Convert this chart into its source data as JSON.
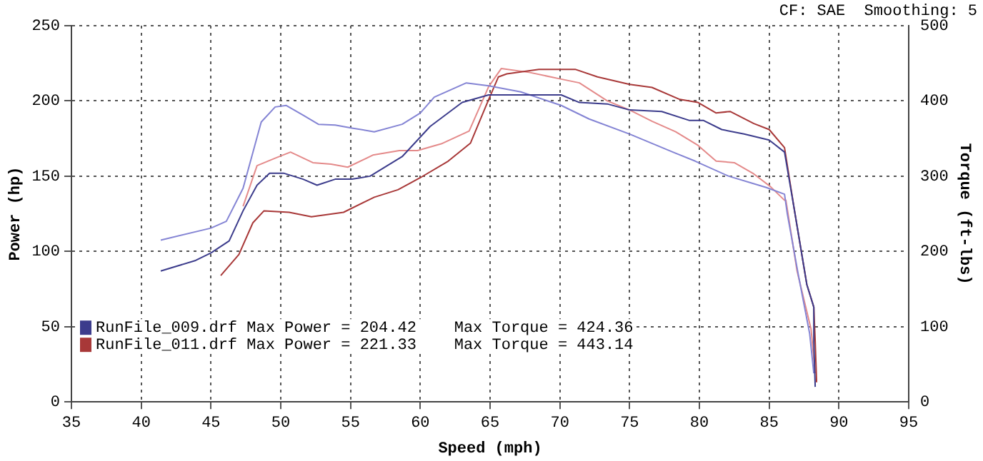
{
  "chart_data": {
    "type": "line",
    "xlabel": "Speed (mph)",
    "ylabel": "Power (hp)",
    "y2label": "Torque (ft-lbs)",
    "annotations": [
      "CF: SAE  Smoothing: 5"
    ],
    "xlim": [
      35,
      95
    ],
    "xticks": [
      35,
      40,
      45,
      50,
      55,
      60,
      65,
      70,
      75,
      80,
      85,
      90,
      95
    ],
    "ylim": [
      0,
      250
    ],
    "yticks": [
      0,
      50,
      100,
      150,
      200,
      250
    ],
    "y2lim": [
      0,
      500
    ],
    "y2ticks": [
      0,
      100,
      200,
      300,
      400,
      500
    ],
    "grid": true,
    "legend": "bottom left",
    "marker": "none",
    "line_style": "solid",
    "series": [
      {
        "name": "RunFile_009.drf Max Power = 204.42    Max Torque = 424.36",
        "color": "#3c3c8c",
        "x": [
          41.4,
          43.9,
          45,
          46.3,
          47.3,
          48.3,
          49.2,
          50.2,
          51.6,
          52.6,
          53.9,
          55.1,
          56.4,
          58.7,
          60.7,
          63,
          64.9,
          67.5,
          70.1,
          71.4,
          73.4,
          75,
          77.3,
          79.3,
          80.3,
          81.6,
          83.2,
          85,
          86.1,
          86.8,
          87.7,
          88.2,
          88.2,
          88.3
        ],
        "values": [
          87,
          94,
          99,
          107,
          127,
          144,
          152,
          152,
          148,
          144,
          148,
          148,
          150,
          163,
          183,
          199,
          204,
          204,
          204,
          199,
          198,
          194,
          193,
          187,
          187,
          181,
          178,
          174,
          166,
          128,
          78,
          63,
          40,
          10
        ]
      },
      {
        "color": "#8484d4",
        "axis": "y2",
        "x": [
          41.4,
          45,
          46.1,
          47.3,
          48.6,
          49.6,
          50.4,
          51.6,
          52.7,
          53.9,
          55.1,
          56.7,
          58.7,
          60,
          61,
          63.3,
          64.9,
          67.2,
          70.1,
          72.1,
          75,
          78.1,
          79.7,
          82.1,
          84.8,
          86.1,
          86.3,
          87.1,
          87.9,
          88.2
        ],
        "values": [
          215,
          231,
          240,
          284,
          372,
          392,
          394,
          381,
          369,
          368,
          364,
          359,
          369,
          384,
          405,
          424,
          420,
          412,
          394,
          376,
          356,
          332,
          320,
          300,
          285,
          276,
          250,
          168,
          91,
          38
        ]
      },
      {
        "name": "RunFile_011.drf Max Power = 221.33    Max Torque = 443.14",
        "color": "#a83838",
        "x": [
          45.7,
          47,
          48,
          48.8,
          50.6,
          52.2,
          54.5,
          56.7,
          58.4,
          60,
          62,
          63.6,
          64.9,
          65.6,
          66.2,
          68.5,
          71.1,
          72.7,
          75,
          76.6,
          78.6,
          79.9,
          81.2,
          82.2,
          83.9,
          85,
          86.1,
          86.8,
          87.7,
          88.2,
          88.3,
          88.4
        ],
        "values": [
          84,
          98,
          119,
          127,
          126,
          123,
          126,
          136,
          141,
          149,
          160,
          172,
          201,
          216,
          218,
          221,
          221,
          216,
          211,
          209,
          201,
          199,
          192,
          193,
          185,
          181,
          169,
          128,
          78,
          63,
          40,
          13
        ]
      },
      {
        "color": "#e48a8a",
        "axis": "y2",
        "x": [
          47.3,
          48.3,
          49.6,
          50.7,
          52.3,
          53.6,
          54.8,
          56.6,
          58.5,
          59.8,
          61.5,
          63.5,
          64.9,
          65.8,
          67.8,
          70.1,
          71.4,
          73.4,
          75,
          76.6,
          78.3,
          79.9,
          81.2,
          82.5,
          83.9,
          85.1,
          86.1,
          86.2,
          87,
          88,
          88.3
        ],
        "values": [
          260,
          314,
          324,
          332,
          318,
          316,
          312,
          328,
          334,
          334,
          343,
          360,
          419,
          443,
          438,
          429,
          424,
          400,
          388,
          373,
          359,
          341,
          320,
          318,
          303,
          286,
          268,
          268,
          174,
          97,
          38
        ]
      }
    ]
  }
}
